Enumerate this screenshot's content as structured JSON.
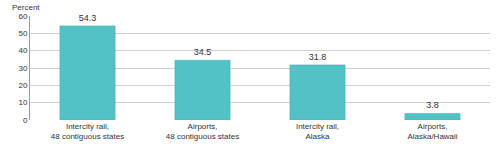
{
  "chart_data": {
    "type": "bar",
    "ylabel": "Percent",
    "categories": [
      "Intercity rail, 48 contiguous states",
      "Airports, 48 contiguous states",
      "Intercity rail, Alaska",
      "Airports, Alaska/Hawaii"
    ],
    "values": [
      54.3,
      34.5,
      31.8,
      3.8
    ],
    "color": "#52c2c6",
    "ylim": [
      0,
      60
    ],
    "yticks": [
      0,
      10,
      20,
      30,
      40,
      50,
      60
    ],
    "grid": true,
    "data_labels": true
  }
}
